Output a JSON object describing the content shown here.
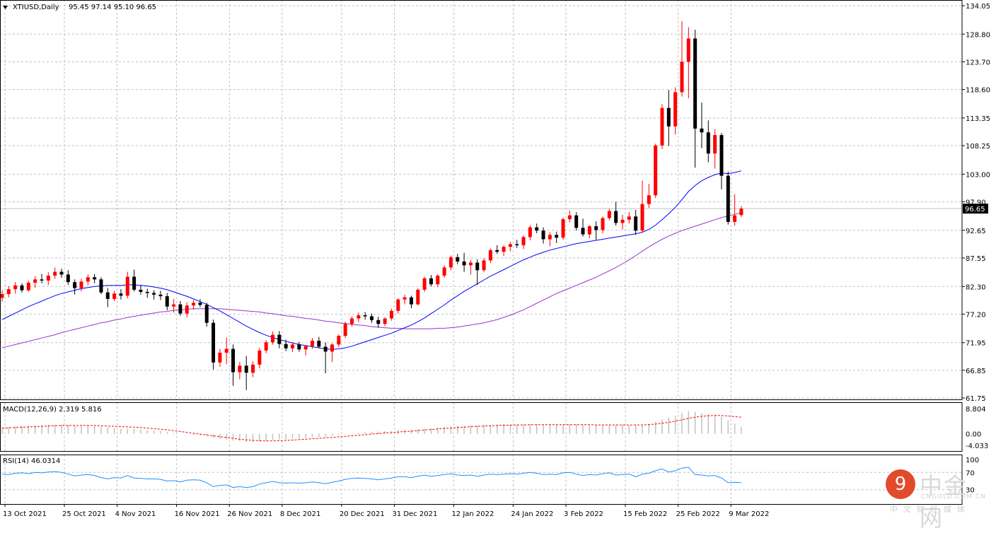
{
  "header": {
    "symbol_label": "XTIUSD,Daily",
    "ohlc_label": "95.45 97.14 95.10 96.65"
  },
  "price_axis": {
    "ticks": [
      "134.05",
      "128.80",
      "123.70",
      "118.60",
      "113.35",
      "108.25",
      "103.00",
      "97.90",
      "92.65",
      "87.55",
      "82.30",
      "77.20",
      "71.95",
      "66.85",
      "61.75"
    ],
    "current_price_label": "96.65"
  },
  "macd": {
    "label": "MACD(12,26,9) 2.319 5.816",
    "ticks": [
      "8.804",
      "0.00",
      "-4.033"
    ]
  },
  "rsi": {
    "label": "RSI(14) 46.0314",
    "ticks": [
      "100",
      "70",
      "30"
    ]
  },
  "date_axis": {
    "labels": [
      "13 Oct 2021",
      "25 Oct 2021",
      "4 Nov 2021",
      "16 Nov 2021",
      "26 Nov 2021",
      "8 Dec 2021",
      "20 Dec 2021",
      "31 Dec 2021",
      "12 Jan 2022",
      "24 Jan 2022",
      "3 Feb 2022",
      "15 Feb 2022",
      "25 Feb 2022",
      "9 Mar 2022"
    ]
  },
  "watermark": {
    "brand": "中金网",
    "site": "CNGOLD.COM.CN",
    "subtitle": "中文财经媒体",
    "logo_glyph": "9"
  },
  "colors": {
    "bull": "#ff0000",
    "bear": "#000000",
    "ma_fast": "#0000ff",
    "ma_slow": "#9933cc",
    "macd_signal": "#ff0000",
    "rsi_line": "#1e90ff",
    "grid": "#c0c0c0"
  },
  "chart_data": {
    "type": "candlestick",
    "symbol": "XTIUSD",
    "timeframe": "Daily",
    "ylim": [
      61.75,
      134.05
    ],
    "x_tick_labels": [
      "13 Oct 2021",
      "25 Oct 2021",
      "4 Nov 2021",
      "16 Nov 2021",
      "26 Nov 2021",
      "8 Dec 2021",
      "20 Dec 2021",
      "31 Dec 2021",
      "12 Jan 2022",
      "24 Jan 2022",
      "3 Feb 2022",
      "15 Feb 2022",
      "25 Feb 2022",
      "9 Mar 2022"
    ],
    "candles": [
      [
        80.2,
        81.6,
        79.5,
        80.9
      ],
      [
        80.9,
        82.4,
        80.3,
        81.8
      ],
      [
        81.8,
        83.1,
        81.0,
        82.5
      ],
      [
        82.5,
        82.9,
        81.2,
        81.6
      ],
      [
        81.6,
        83.4,
        81.3,
        83.0
      ],
      [
        83.0,
        84.2,
        82.1,
        83.6
      ],
      [
        83.6,
        84.6,
        82.9,
        83.4
      ],
      [
        83.4,
        84.9,
        82.6,
        84.3
      ],
      [
        84.3,
        85.8,
        83.7,
        85.0
      ],
      [
        85.0,
        85.6,
        83.9,
        84.5
      ],
      [
        84.5,
        85.3,
        82.6,
        83.1
      ],
      [
        83.1,
        83.6,
        80.8,
        82.0
      ],
      [
        82.0,
        83.7,
        81.4,
        83.2
      ],
      [
        83.2,
        84.5,
        82.5,
        84.0
      ],
      [
        84.0,
        84.6,
        82.9,
        83.6
      ],
      [
        83.6,
        84.0,
        80.9,
        81.2
      ],
      [
        81.2,
        82.0,
        78.5,
        80.0
      ],
      [
        80.0,
        81.5,
        79.6,
        81.0
      ],
      [
        81.0,
        81.8,
        79.9,
        80.6
      ],
      [
        80.6,
        85.0,
        80.1,
        84.1
      ],
      [
        84.1,
        85.4,
        81.4,
        81.7
      ],
      [
        81.7,
        82.5,
        80.8,
        81.3
      ],
      [
        81.3,
        81.9,
        80.2,
        81.1
      ],
      [
        81.1,
        81.6,
        79.9,
        80.8
      ],
      [
        80.8,
        81.5,
        79.8,
        80.5
      ],
      [
        80.5,
        81.1,
        77.9,
        78.6
      ],
      [
        78.6,
        80.0,
        77.5,
        79.0
      ],
      [
        79.0,
        79.6,
        76.9,
        77.3
      ],
      [
        77.3,
        79.4,
        76.6,
        78.8
      ],
      [
        78.8,
        79.8,
        78.0,
        79.3
      ],
      [
        79.3,
        80.0,
        78.5,
        78.9
      ],
      [
        78.9,
        79.3,
        74.9,
        75.6
      ],
      [
        75.6,
        76.2,
        67.0,
        68.3
      ],
      [
        68.3,
        70.8,
        67.5,
        70.1
      ],
      [
        70.1,
        72.9,
        68.0,
        70.8
      ],
      [
        70.8,
        71.6,
        64.0,
        66.5
      ],
      [
        66.5,
        68.4,
        65.2,
        67.7
      ],
      [
        67.7,
        69.5,
        63.2,
        66.4
      ],
      [
        66.4,
        68.5,
        65.6,
        67.9
      ],
      [
        67.9,
        71.0,
        67.2,
        70.5
      ],
      [
        70.5,
        72.4,
        70.0,
        72.0
      ],
      [
        72.0,
        74.0,
        71.6,
        73.4
      ],
      [
        73.4,
        74.1,
        70.9,
        71.7
      ],
      [
        71.7,
        72.5,
        70.4,
        70.9
      ],
      [
        70.9,
        72.0,
        70.2,
        71.6
      ],
      [
        71.6,
        72.1,
        70.3,
        70.7
      ],
      [
        70.7,
        71.5,
        69.6,
        71.3
      ],
      [
        71.3,
        72.8,
        70.8,
        72.3
      ],
      [
        72.3,
        73.0,
        70.9,
        71.2
      ],
      [
        71.2,
        72.0,
        66.3,
        70.3
      ],
      [
        70.3,
        71.8,
        68.4,
        71.6
      ],
      [
        71.6,
        73.5,
        71.1,
        73.2
      ],
      [
        73.2,
        75.8,
        72.8,
        75.4
      ],
      [
        75.4,
        76.8,
        74.9,
        76.4
      ],
      [
        76.4,
        77.5,
        75.7,
        77.0
      ],
      [
        77.0,
        77.6,
        76.2,
        76.8
      ],
      [
        76.8,
        77.3,
        75.6,
        76.1
      ],
      [
        76.1,
        76.7,
        74.7,
        75.4
      ],
      [
        75.4,
        76.6,
        75.0,
        76.4
      ],
      [
        76.4,
        78.2,
        76.0,
        77.8
      ],
      [
        77.8,
        80.1,
        77.3,
        79.9
      ],
      [
        79.9,
        80.8,
        79.0,
        80.3
      ],
      [
        80.3,
        80.6,
        78.3,
        79.0
      ],
      [
        79.0,
        82.0,
        78.8,
        81.7
      ],
      [
        81.7,
        84.1,
        81.3,
        83.8
      ],
      [
        83.8,
        84.4,
        82.3,
        82.7
      ],
      [
        82.7,
        84.6,
        82.2,
        84.3
      ],
      [
        84.3,
        86.2,
        83.9,
        85.8
      ],
      [
        85.8,
        88.0,
        85.3,
        87.7
      ],
      [
        87.7,
        88.3,
        86.4,
        86.9
      ],
      [
        86.9,
        88.5,
        85.0,
        86.2
      ],
      [
        86.2,
        87.2,
        84.5,
        86.7
      ],
      [
        86.7,
        87.3,
        82.6,
        85.3
      ],
      [
        85.3,
        87.5,
        84.9,
        87.1
      ],
      [
        87.1,
        89.3,
        86.6,
        89.0
      ],
      [
        89.0,
        89.9,
        88.3,
        88.7
      ],
      [
        88.7,
        89.9,
        87.9,
        89.6
      ],
      [
        89.6,
        90.5,
        88.8,
        90.1
      ],
      [
        90.1,
        90.9,
        89.4,
        89.9
      ],
      [
        89.9,
        91.7,
        89.2,
        91.4
      ],
      [
        91.4,
        93.6,
        90.8,
        93.2
      ],
      [
        93.2,
        93.9,
        92.1,
        92.6
      ],
      [
        92.6,
        93.2,
        90.2,
        91.0
      ],
      [
        91.0,
        92.3,
        89.7,
        91.8
      ],
      [
        91.8,
        92.4,
        90.3,
        91.3
      ],
      [
        91.3,
        95.0,
        90.9,
        94.7
      ],
      [
        94.7,
        96.3,
        94.1,
        95.4
      ],
      [
        95.4,
        96.0,
        92.6,
        93.1
      ],
      [
        93.1,
        94.8,
        91.5,
        91.9
      ],
      [
        91.9,
        93.6,
        91.2,
        93.4
      ],
      [
        93.4,
        94.3,
        90.9,
        92.7
      ],
      [
        92.7,
        95.2,
        92.1,
        94.9
      ],
      [
        94.9,
        96.6,
        94.5,
        96.2
      ],
      [
        96.2,
        97.9,
        93.5,
        94.0
      ],
      [
        94.0,
        95.5,
        92.8,
        94.6
      ],
      [
        94.6,
        96.0,
        93.9,
        95.2
      ],
      [
        95.2,
        96.4,
        91.8,
        92.6
      ],
      [
        92.6,
        101.8,
        92.2,
        97.5
      ],
      [
        97.5,
        101.2,
        96.8,
        99.1
      ],
      [
        99.1,
        108.6,
        98.6,
        108.3
      ],
      [
        108.3,
        115.9,
        107.6,
        115.2
      ],
      [
        115.2,
        118.5,
        108.2,
        111.8
      ],
      [
        111.8,
        119.0,
        110.3,
        118.1
      ],
      [
        118.1,
        131.2,
        117.3,
        123.7
      ],
      [
        123.7,
        130.1,
        117.0,
        128.0
      ],
      [
        128.0,
        129.6,
        104.2,
        111.4
      ],
      [
        111.4,
        116.2,
        107.8,
        110.7
      ],
      [
        110.7,
        112.9,
        105.2,
        106.8
      ],
      [
        106.8,
        111.3,
        104.0,
        110.2
      ],
      [
        110.2,
        110.6,
        100.2,
        102.7
      ],
      [
        102.7,
        103.5,
        93.7,
        94.2
      ],
      [
        94.2,
        99.3,
        93.5,
        95.4
      ],
      [
        95.45,
        97.14,
        95.1,
        96.65
      ]
    ],
    "ma_fast": {
      "name": "",
      "values": [
        76.2,
        76.8,
        77.4,
        78.0,
        78.6,
        79.1,
        79.6,
        80.1,
        80.6,
        81.0,
        81.3,
        81.6,
        81.9,
        82.1,
        82.3,
        82.4,
        82.5,
        82.5,
        82.5,
        82.6,
        82.6,
        82.5,
        82.4,
        82.2,
        82.0,
        81.7,
        81.3,
        80.9,
        80.5,
        80.0,
        79.5,
        79.0,
        78.4,
        77.8,
        77.1,
        76.4,
        75.7,
        75.0,
        74.4,
        73.8,
        73.3,
        72.9,
        72.5,
        72.2,
        71.9,
        71.6,
        71.4,
        71.2,
        71.0,
        70.8,
        70.7,
        70.8,
        71.0,
        71.3,
        71.7,
        72.1,
        72.5,
        72.9,
        73.3,
        73.7,
        74.2,
        74.7,
        75.2,
        75.8,
        76.5,
        77.3,
        78.1,
        78.9,
        79.8,
        80.6,
        81.4,
        82.1,
        82.8,
        83.5,
        84.2,
        84.8,
        85.4,
        86.0,
        86.6,
        87.2,
        87.7,
        88.2,
        88.6,
        89.0,
        89.3,
        89.6,
        89.9,
        90.2,
        90.4,
        90.6,
        90.8,
        91.0,
        91.2,
        91.4,
        91.6,
        91.8,
        92.0,
        92.3,
        92.8,
        93.6,
        94.6,
        95.7,
        96.9,
        98.3,
        99.8,
        100.9,
        101.8,
        102.4,
        102.9,
        103.2,
        103.1,
        103.3,
        103.6
      ]
    },
    "ma_slow": {
      "name": "",
      "values": [
        71.0,
        71.3,
        71.6,
        71.9,
        72.2,
        72.5,
        72.8,
        73.1,
        73.4,
        73.8,
        74.1,
        74.4,
        74.7,
        75.0,
        75.3,
        75.6,
        75.8,
        76.1,
        76.3,
        76.6,
        76.8,
        77.0,
        77.2,
        77.4,
        77.6,
        77.7,
        77.9,
        78.0,
        78.1,
        78.2,
        78.2,
        78.2,
        78.2,
        78.2,
        78.1,
        78.0,
        77.9,
        77.8,
        77.7,
        77.6,
        77.4,
        77.3,
        77.1,
        76.9,
        76.8,
        76.6,
        76.4,
        76.3,
        76.1,
        75.9,
        75.8,
        75.6,
        75.5,
        75.3,
        75.2,
        75.1,
        74.9,
        74.8,
        74.7,
        74.6,
        74.6,
        74.5,
        74.5,
        74.5,
        74.5,
        74.5,
        74.6,
        74.6,
        74.7,
        74.8,
        75.0,
        75.2,
        75.4,
        75.6,
        75.9,
        76.2,
        76.6,
        77.0,
        77.5,
        78.0,
        78.6,
        79.2,
        79.8,
        80.4,
        81.0,
        81.5,
        82.0,
        82.5,
        83.0,
        83.5,
        84.0,
        84.6,
        85.2,
        85.8,
        86.5,
        87.2,
        88.0,
        88.8,
        89.6,
        90.3,
        91.0,
        91.6,
        92.1,
        92.6,
        93.0,
        93.4,
        93.8,
        94.2,
        94.6,
        95.0,
        95.3,
        95.6,
        95.9
      ]
    },
    "macd": {
      "ylim": [
        -4.033,
        8.804
      ],
      "histogram": [
        2.1,
        2.4,
        2.6,
        2.7,
        2.8,
        2.9,
        3.0,
        3.1,
        3.2,
        3.2,
        3.1,
        2.9,
        2.8,
        2.8,
        2.7,
        2.5,
        2.2,
        2.0,
        1.8,
        1.8,
        1.7,
        1.5,
        1.3,
        1.1,
        0.9,
        0.6,
        0.3,
        0.0,
        -0.2,
        -0.4,
        -0.6,
        -0.8,
        -1.4,
        -1.8,
        -2.0,
        -2.4,
        -2.6,
        -2.8,
        -2.8,
        -2.7,
        -2.5,
        -2.2,
        -2.0,
        -1.9,
        -1.7,
        -1.6,
        -1.4,
        -1.2,
        -1.1,
        -1.0,
        -0.8,
        -0.5,
        -0.2,
        0.1,
        0.4,
        0.6,
        0.7,
        0.8,
        0.9,
        1.0,
        1.2,
        1.4,
        1.5,
        1.7,
        1.9,
        2.0,
        2.2,
        2.4,
        2.6,
        2.7,
        2.8,
        2.9,
        2.9,
        3.0,
        3.1,
        3.2,
        3.3,
        3.3,
        3.3,
        3.3,
        3.4,
        3.4,
        3.3,
        3.3,
        3.2,
        3.2,
        3.3,
        3.3,
        3.2,
        3.1,
        3.0,
        3.0,
        3.0,
        3.1,
        3.1,
        3.0,
        3.0,
        3.2,
        3.5,
        4.2,
        5.0,
        5.6,
        6.3,
        7.2,
        7.9,
        7.6,
        7.2,
        6.8,
        6.6,
        6.0,
        4.8,
        3.6,
        2.3
      ],
      "signal": [
        2.0,
        2.1,
        2.2,
        2.3,
        2.4,
        2.5,
        2.6,
        2.7,
        2.8,
        2.9,
        2.9,
        2.9,
        2.9,
        2.9,
        2.9,
        2.8,
        2.7,
        2.6,
        2.5,
        2.4,
        2.3,
        2.2,
        2.0,
        1.8,
        1.6,
        1.4,
        1.1,
        0.8,
        0.5,
        0.2,
        -0.1,
        -0.4,
        -0.7,
        -1.0,
        -1.3,
        -1.6,
        -1.9,
        -2.1,
        -2.3,
        -2.4,
        -2.5,
        -2.5,
        -2.4,
        -2.3,
        -2.2,
        -2.0,
        -1.9,
        -1.7,
        -1.6,
        -1.4,
        -1.3,
        -1.1,
        -0.9,
        -0.7,
        -0.5,
        -0.3,
        -0.1,
        0.1,
        0.3,
        0.4,
        0.6,
        0.8,
        0.9,
        1.1,
        1.3,
        1.5,
        1.7,
        1.9,
        2.0,
        2.2,
        2.3,
        2.5,
        2.6,
        2.7,
        2.8,
        2.9,
        3.0,
        3.0,
        3.1,
        3.1,
        3.2,
        3.2,
        3.2,
        3.2,
        3.2,
        3.2,
        3.2,
        3.2,
        3.2,
        3.2,
        3.1,
        3.1,
        3.1,
        3.1,
        3.1,
        3.1,
        3.1,
        3.1,
        3.2,
        3.4,
        3.7,
        4.0,
        4.4,
        4.9,
        5.4,
        5.8,
        6.1,
        6.3,
        6.4,
        6.4,
        6.2,
        6.0,
        5.816
      ]
    },
    "rsi": {
      "ylim": [
        0,
        100
      ],
      "levels": [
        30,
        70
      ],
      "values": [
        66,
        65,
        68,
        69,
        67,
        70,
        69,
        71,
        72,
        70,
        66,
        62,
        64,
        65,
        63,
        58,
        55,
        58,
        57,
        63,
        57,
        56,
        55,
        55,
        54,
        50,
        51,
        48,
        52,
        53,
        52,
        46,
        37,
        40,
        41,
        35,
        37,
        35,
        37,
        43,
        46,
        49,
        46,
        45,
        46,
        45,
        46,
        48,
        46,
        44,
        47,
        50,
        54,
        56,
        57,
        56,
        55,
        53,
        55,
        57,
        60,
        60,
        58,
        61,
        64,
        61,
        63,
        65,
        67,
        64,
        63,
        64,
        61,
        64,
        66,
        65,
        66,
        67,
        66,
        68,
        70,
        68,
        65,
        66,
        65,
        69,
        70,
        66,
        63,
        65,
        64,
        67,
        69,
        64,
        65,
        66,
        60,
        66,
        68,
        74,
        78,
        71,
        74,
        80,
        82,
        65,
        64,
        62,
        63,
        57,
        46,
        47,
        46.0314
      ]
    }
  }
}
